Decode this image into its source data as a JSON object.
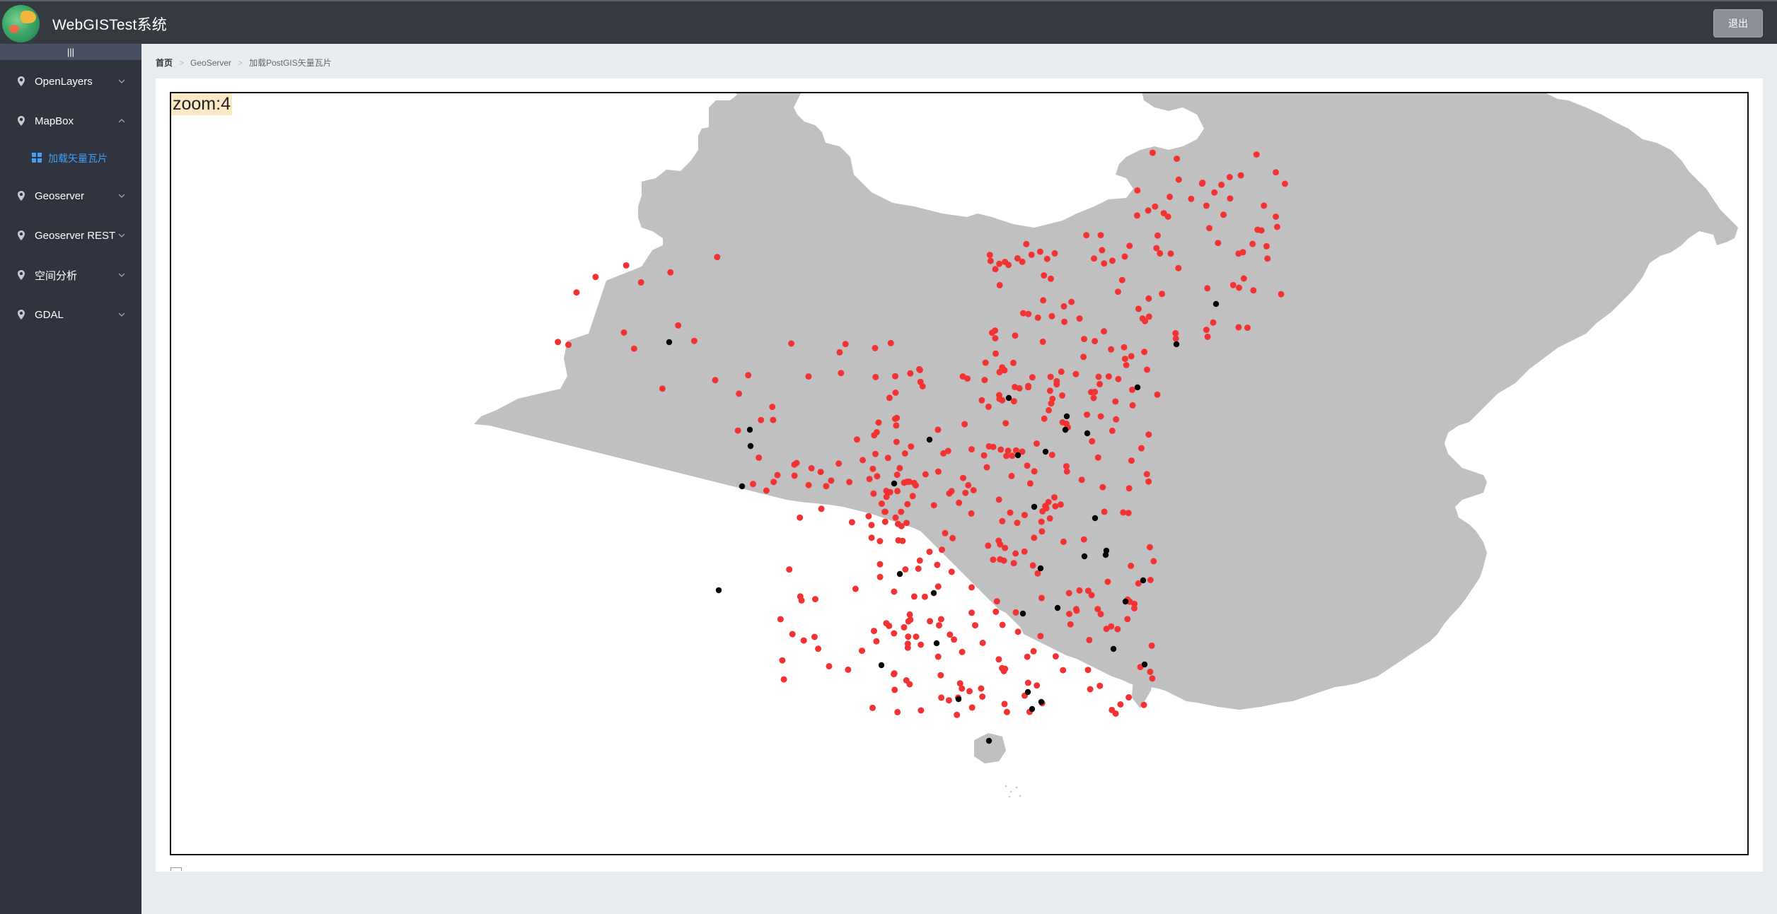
{
  "header": {
    "title": "WebGISTest系统",
    "logout_label": "退出"
  },
  "sidebar": {
    "collapse_icon": "|||",
    "items": [
      {
        "label": "OpenLayers",
        "expanded": false
      },
      {
        "label": "MapBox",
        "expanded": true
      },
      {
        "label": "Geoserver",
        "expanded": false
      },
      {
        "label": "Geoserver REST",
        "expanded": false
      },
      {
        "label": "空间分析",
        "expanded": false
      },
      {
        "label": "GDAL",
        "expanded": false
      }
    ],
    "mapbox_children": [
      {
        "label": "加载矢量瓦片",
        "active": true
      }
    ]
  },
  "breadcrumb": [
    "首页",
    "GeoServer",
    "加载PostGIS矢量瓦片"
  ],
  "map": {
    "zoom_text": "zoom:4",
    "land_color": "#c0c0c0",
    "city_point_color": "#f33333",
    "capital_point_color": "#000000"
  },
  "colors": {
    "header_bg": "#353a40",
    "sidebar_bg": "#30343f",
    "active_menu": "#3f9ef5"
  },
  "icons": [
    "app-logo",
    "location-pin-icon",
    "chevron-down-icon",
    "chevron-up-icon",
    "grid-icon",
    "breadcrumb-separator-icon"
  ]
}
